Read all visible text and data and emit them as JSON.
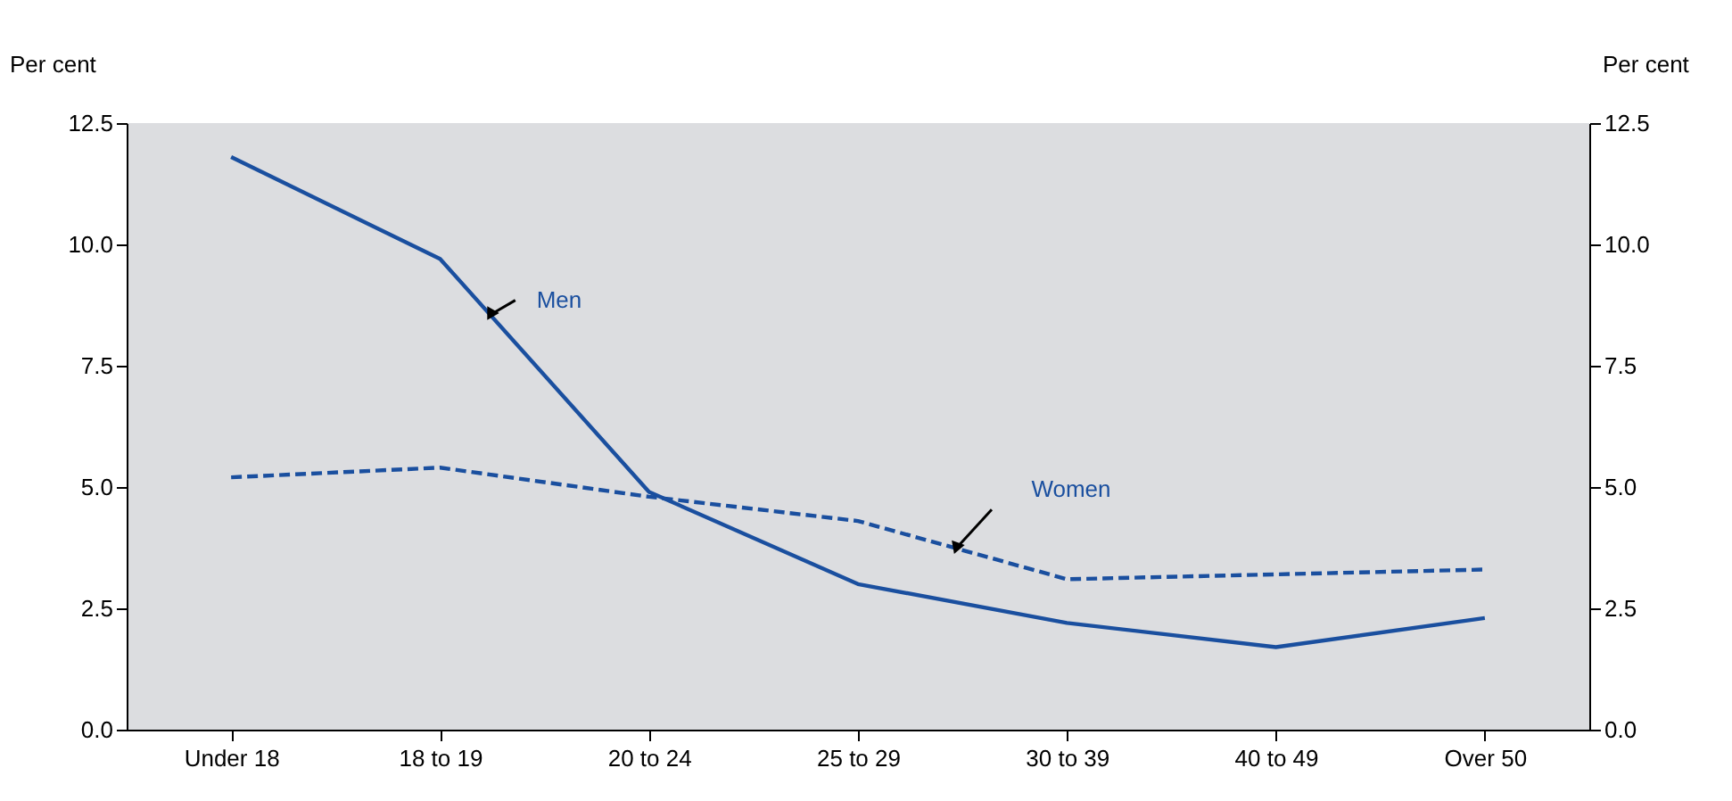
{
  "chart_data": {
    "type": "line",
    "categories": [
      "Under 18",
      "18 to 19",
      "20 to 24",
      "25 to 29",
      "30 to 39",
      "40 to 49",
      "Over 50"
    ],
    "ylabel": "Per cent",
    "y2label": "Per cent",
    "series": [
      {
        "name": "Men",
        "color": "#1a4f9f",
        "line_style": "solid",
        "values": [
          11.8,
          9.7,
          4.9,
          3.0,
          2.2,
          1.7,
          2.3
        ]
      },
      {
        "name": "Women",
        "color": "#1a4f9f",
        "line_style": "dashed",
        "values": [
          5.2,
          5.4,
          4.8,
          4.3,
          3.1,
          3.2,
          3.3
        ]
      }
    ],
    "ylim": [
      0,
      12.5
    ],
    "yticks": [
      {
        "value": 0,
        "label": "0.0"
      },
      2.5,
      {
        "value": 5,
        "label": "5.0"
      },
      7.5,
      {
        "value": 10,
        "label": "10.0"
      },
      12.5
    ],
    "y2lim": [
      0,
      12.5
    ],
    "y2ticks": [
      {
        "value": 0,
        "label": "0.0"
      },
      2.5,
      {
        "value": 5,
        "label": "5.0"
      },
      7.5,
      {
        "value": 10,
        "label": "10.0"
      },
      12.5
    ],
    "grid": false,
    "marker": "none"
  }
}
